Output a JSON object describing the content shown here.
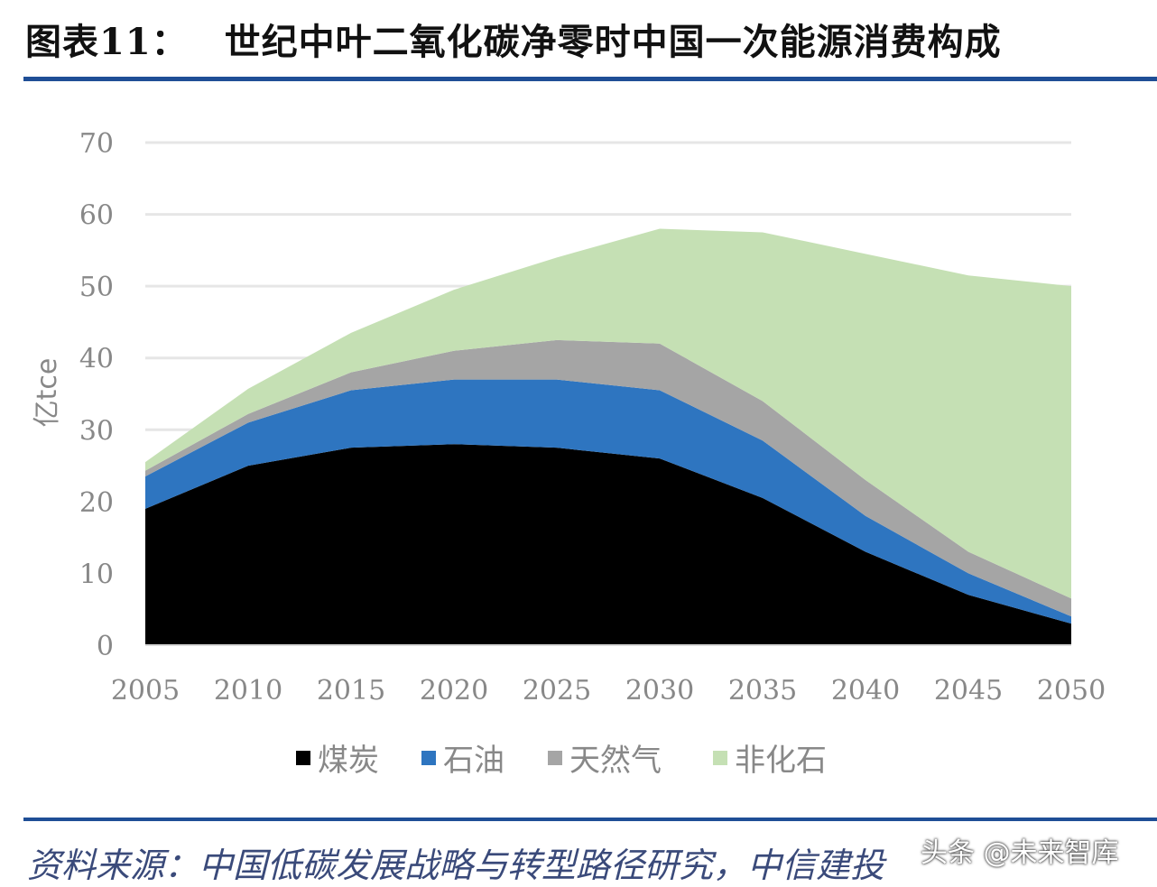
{
  "header": {
    "figure_label": "图表11：",
    "title": "世纪中叶二氧化碳净零时中国一次能源消费构成"
  },
  "footer": {
    "source": "资料来源：中国低碳发展战略与转型路径研究，中信建投",
    "watermark": "头条 @未来智库"
  },
  "chart_data": {
    "type": "area",
    "stacked": true,
    "title": "",
    "xlabel": "",
    "ylabel": "亿tce",
    "x": [
      2005,
      2010,
      2015,
      2020,
      2025,
      2030,
      2035,
      2040,
      2045,
      2050
    ],
    "xticks": [
      "2005",
      "2010",
      "2015",
      "2020",
      "2025",
      "2030",
      "2035",
      "2040",
      "2045",
      "2050"
    ],
    "ylim": [
      0,
      70
    ],
    "yticks": [
      "0",
      "10",
      "20",
      "30",
      "40",
      "50",
      "60",
      "70"
    ],
    "grid": true,
    "legend": "bottom",
    "series": [
      {
        "name": "煤炭",
        "color": "#000000",
        "values": [
          19,
          25,
          27.5,
          28,
          27.5,
          26,
          20.5,
          13,
          7,
          3
        ]
      },
      {
        "name": "石油",
        "color": "#2e75c0",
        "values": [
          4.5,
          6,
          8,
          9,
          9.5,
          9.5,
          8,
          5,
          3,
          1
        ]
      },
      {
        "name": "天然气",
        "color": "#a5a5a5",
        "values": [
          0.8,
          1.2,
          2.5,
          4,
          5.5,
          6.5,
          5.5,
          5,
          3,
          2.5
        ]
      },
      {
        "name": "非化石",
        "color": "#c5e0b4",
        "values": [
          1.2,
          3.5,
          5.5,
          8.5,
          11.5,
          16,
          23.5,
          31.5,
          38.5,
          43.5
        ]
      }
    ]
  }
}
